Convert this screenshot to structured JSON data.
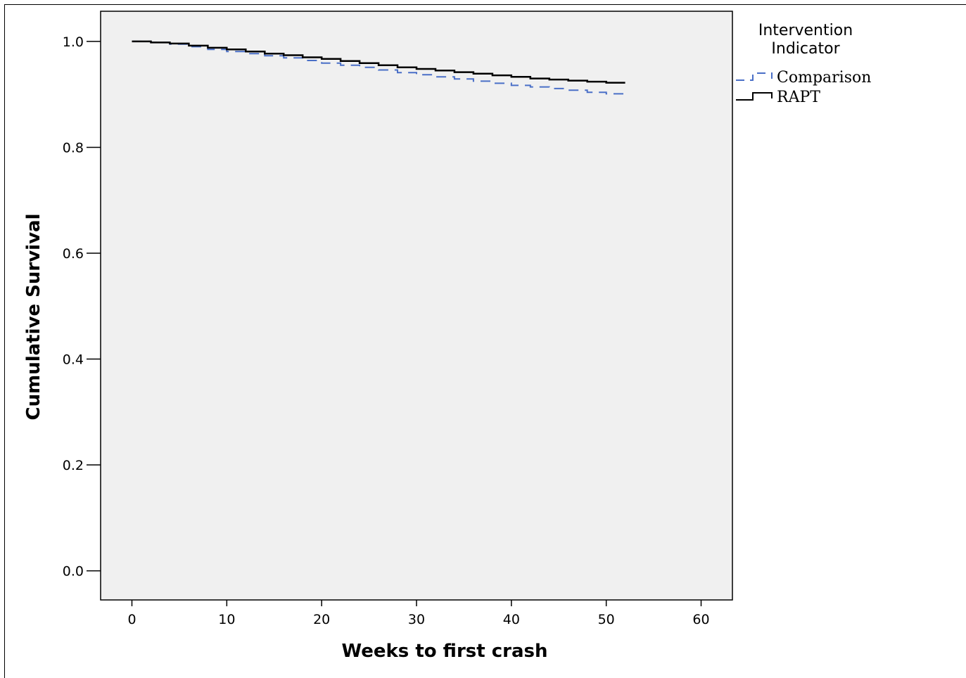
{
  "chart_data": {
    "type": "line",
    "subtype": "kaplan-meier step",
    "xlabel": "Weeks to first crash",
    "ylabel": "Cumulative Survival",
    "xlim": [
      -3.3,
      63.3
    ],
    "ylim": [
      -0.055,
      1.057
    ],
    "x_ticks": [
      0,
      10,
      20,
      30,
      40,
      50,
      60
    ],
    "y_ticks": [
      0.0,
      0.2,
      0.4,
      0.6,
      0.8,
      1.0
    ],
    "x_tick_labels": [
      "0",
      "10",
      "20",
      "30",
      "40",
      "50",
      "60"
    ],
    "y_tick_labels": [
      "0.0",
      "0.2",
      "0.4",
      "0.6",
      "0.8",
      "1.0"
    ],
    "grid": false,
    "plot_background": "#f0f0f0",
    "legend": {
      "title": "Intervention Indicator",
      "title_lines": [
        "Intervention",
        "Indicator"
      ],
      "position": "right-top",
      "entries": [
        "Comparison",
        "RAPT"
      ]
    },
    "series": [
      {
        "name": "Comparison",
        "color": "#4a6fc7",
        "style": "dashed",
        "x": [
          0,
          2,
          4,
          6,
          8,
          10,
          12,
          14,
          16,
          18,
          20,
          22,
          24,
          26,
          28,
          30,
          32,
          34,
          36,
          38,
          40,
          42,
          44,
          46,
          48,
          50,
          52
        ],
        "y": [
          1.0,
          0.998,
          0.995,
          0.99,
          0.985,
          0.981,
          0.977,
          0.973,
          0.969,
          0.964,
          0.959,
          0.955,
          0.951,
          0.946,
          0.941,
          0.937,
          0.933,
          0.929,
          0.925,
          0.921,
          0.917,
          0.914,
          0.911,
          0.908,
          0.904,
          0.901,
          0.9
        ]
      },
      {
        "name": "RAPT",
        "color": "#000000",
        "style": "solid",
        "x": [
          0,
          2,
          4,
          6,
          8,
          10,
          12,
          14,
          16,
          18,
          20,
          22,
          24,
          26,
          28,
          30,
          32,
          34,
          36,
          38,
          40,
          42,
          44,
          46,
          48,
          50,
          52
        ],
        "y": [
          1.0,
          0.998,
          0.996,
          0.992,
          0.988,
          0.985,
          0.981,
          0.977,
          0.974,
          0.97,
          0.967,
          0.963,
          0.959,
          0.955,
          0.951,
          0.948,
          0.945,
          0.942,
          0.939,
          0.936,
          0.933,
          0.93,
          0.928,
          0.926,
          0.924,
          0.922,
          0.922
        ]
      }
    ]
  }
}
